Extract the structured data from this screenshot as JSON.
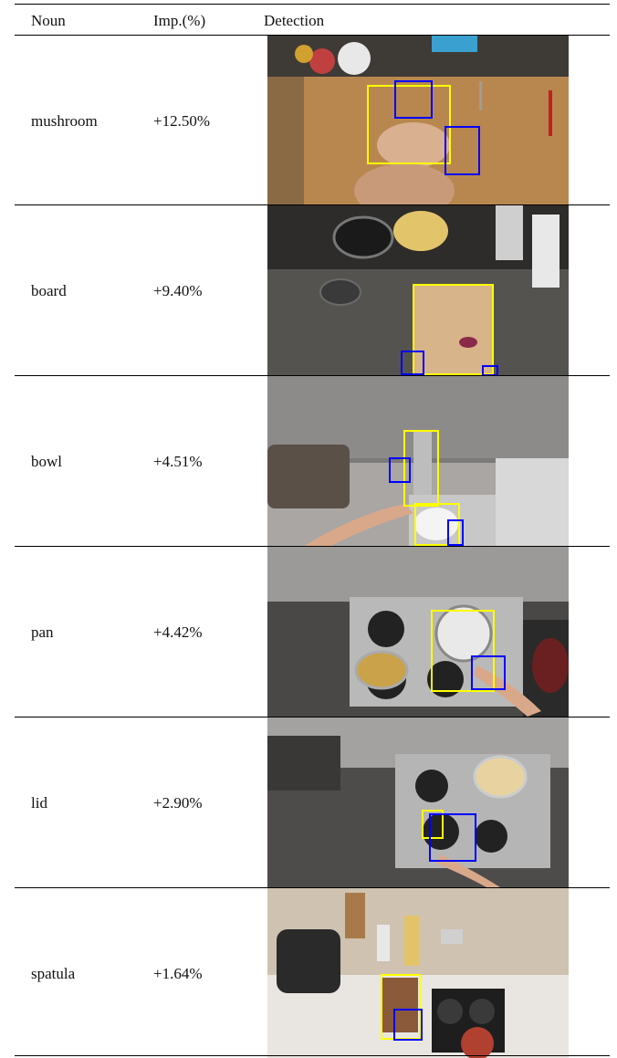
{
  "table": {
    "headers": {
      "noun": "Noun",
      "imp": "Imp.(%)",
      "detection": "Detection"
    },
    "rows": [
      {
        "noun": "mushroom",
        "imp": "+12.50%",
        "scene": "cutting-board-scene"
      },
      {
        "noun": "board",
        "imp": "+9.40%",
        "scene": "stovetop-board-scene"
      },
      {
        "noun": "bowl",
        "imp": "+4.51%",
        "scene": "sink-scene"
      },
      {
        "noun": "pan",
        "imp": "+4.42%",
        "scene": "stove-pan-scene"
      },
      {
        "noun": "lid",
        "imp": "+2.90%",
        "scene": "stove-lid-scene"
      },
      {
        "noun": "spatula",
        "imp": "+1.64%",
        "scene": "counter-spatula-scene"
      }
    ]
  },
  "colors": {
    "noun_box": "#ffff00",
    "hand_box": "#0000ff"
  }
}
